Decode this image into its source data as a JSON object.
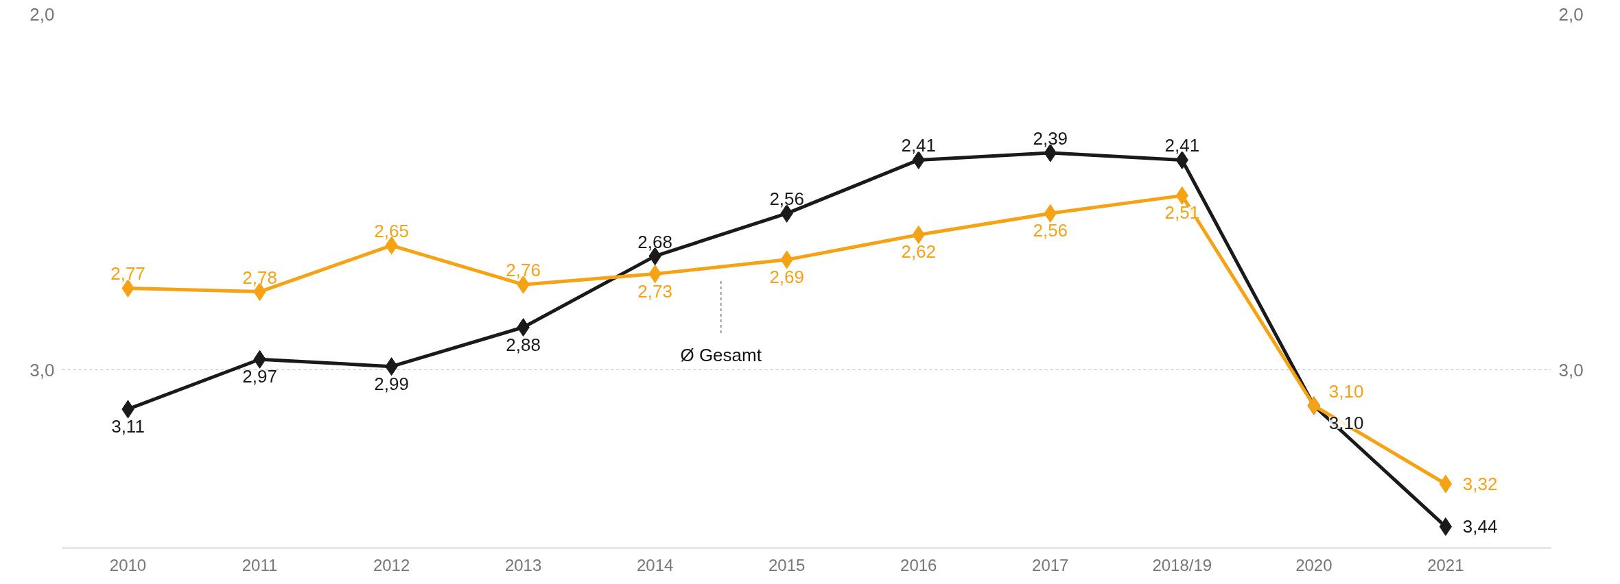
{
  "chart_data": {
    "type": "line",
    "categories": [
      "2010",
      "2011",
      "2012",
      "2013",
      "2014",
      "2015",
      "2016",
      "2017",
      "2018/19",
      "2020",
      "2021"
    ],
    "series": [
      {
        "color": "#1a1a1a",
        "values": [
          3.11,
          2.97,
          2.99,
          2.88,
          2.68,
          2.56,
          2.41,
          2.39,
          2.41,
          3.1,
          3.44
        ],
        "value_labels": [
          "3,11",
          "2,97",
          "2,99",
          "2,88",
          "2,68",
          "2,56",
          "2,41",
          "2,39",
          "2,41",
          "3,10",
          "3,44"
        ]
      },
      {
        "name": "Ø Gesamt",
        "color": "#f5a315",
        "values": [
          2.77,
          2.78,
          2.65,
          2.76,
          2.73,
          2.69,
          2.62,
          2.56,
          2.51,
          3.1,
          3.32
        ],
        "value_labels": [
          "2,77",
          "2,78",
          "2,65",
          "2,76",
          "2,73",
          "2,69",
          "2,62",
          "2,56",
          "2,51",
          "3,10",
          "3,32"
        ]
      }
    ],
    "ylim": [
      3.5,
      2.0
    ],
    "yticks": [
      {
        "value": 2.0,
        "label": "2,0"
      },
      {
        "value": 3.0,
        "label": "3,0"
      }
    ],
    "y2lim": [
      3.5,
      2.0
    ],
    "y2ticks": [
      {
        "value": 2.0,
        "label": "2,0"
      },
      {
        "value": 3.0,
        "label": "3,0"
      }
    ],
    "grid": "y",
    "marker": "diamond",
    "line_style": "solid",
    "legend": false
  }
}
